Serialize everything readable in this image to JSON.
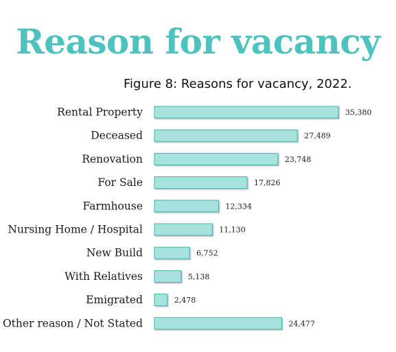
{
  "heading": "Reason for vacancy",
  "colors": {
    "heading": "#4EC2BE",
    "bar_fill": "#A7E3DE",
    "bar_stroke": "#45B0AA"
  },
  "chart_data": {
    "type": "bar",
    "orientation": "horizontal",
    "title": "Figure 8: Reasons for vacancy, 2022.",
    "categories": [
      "Rental Property",
      "Deceased",
      "Renovation",
      "For Sale",
      "Farmhouse",
      "Nursing Home / Hospital",
      "New Build",
      "With Relatives",
      "Emigrated",
      "Other reason / Not Stated"
    ],
    "values": [
      35380,
      27489,
      23748,
      17826,
      12334,
      11130,
      6752,
      5138,
      2478,
      24477
    ],
    "value_labels": [
      "35,380",
      "27,489",
      "23,748",
      "17,826",
      "12,334",
      "11,130",
      "6,752",
      "5,138",
      "2,478",
      "24,477"
    ],
    "xlim": [
      0,
      35380
    ],
    "grid": false,
    "legend": "none"
  }
}
